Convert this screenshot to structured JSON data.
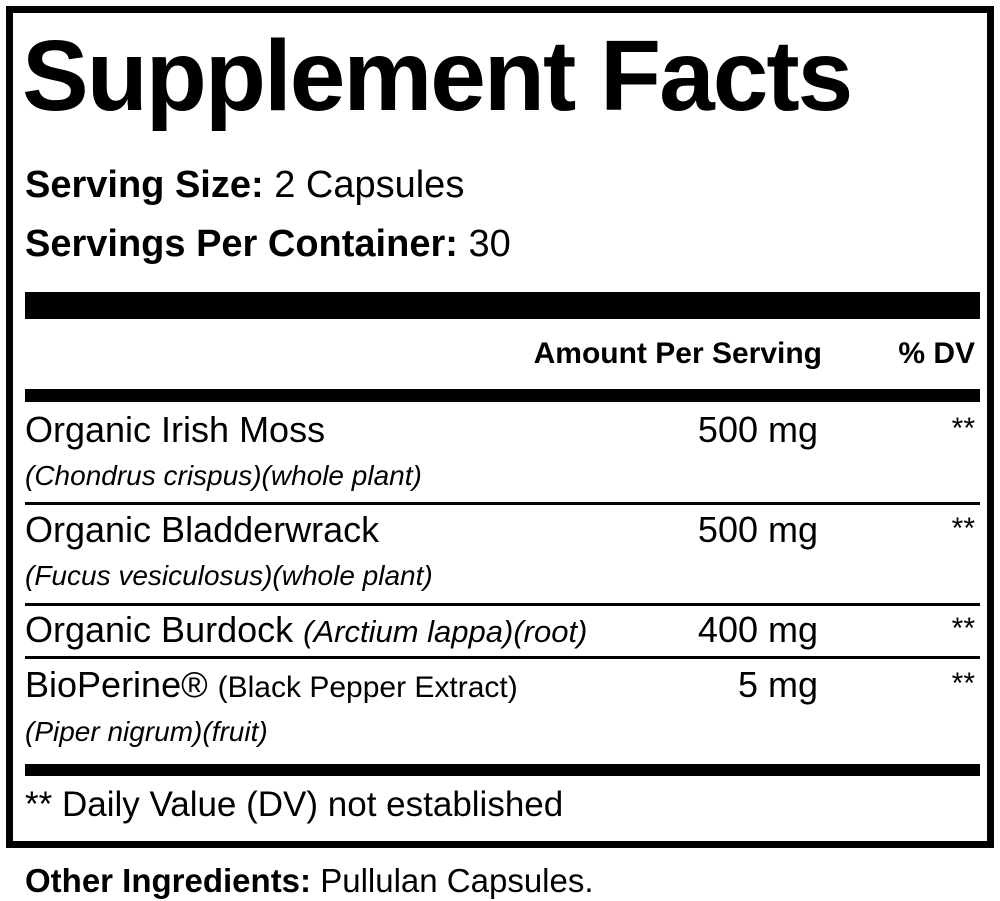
{
  "title": "Supplement Facts",
  "serving_size": {
    "label": "Serving Size:",
    "value": "2 Capsules"
  },
  "servings_per_container": {
    "label": "Servings Per Container:",
    "value": "30"
  },
  "table": {
    "header": [
      "Amount Per Serving",
      "% DV"
    ],
    "rows": [
      {
        "name": "Organic Irish Moss",
        "detail": "(Chondrus crispus)(whole plant)",
        "amount": "500 mg",
        "dv": "**"
      },
      {
        "name": "Organic Bladderwrack",
        "detail": "(Fucus vesiculosus)(whole plant)",
        "amount": "500 mg",
        "dv": "**"
      },
      {
        "name": "Organic Burdock",
        "inline_detail": "(Arctium lappa)(root)",
        "amount": "400 mg",
        "dv": "**"
      },
      {
        "name": "BioPerine®",
        "inline_detail": "(Black Pepper Extract)",
        "detail": "(Piper nigrum)(fruit)",
        "amount": "5 mg",
        "dv": "**"
      }
    ]
  },
  "footnote": "** Daily Value (DV) not established",
  "other_ingredients": {
    "label": "Other Ingredients:",
    "value": "Pullulan Capsules."
  }
}
